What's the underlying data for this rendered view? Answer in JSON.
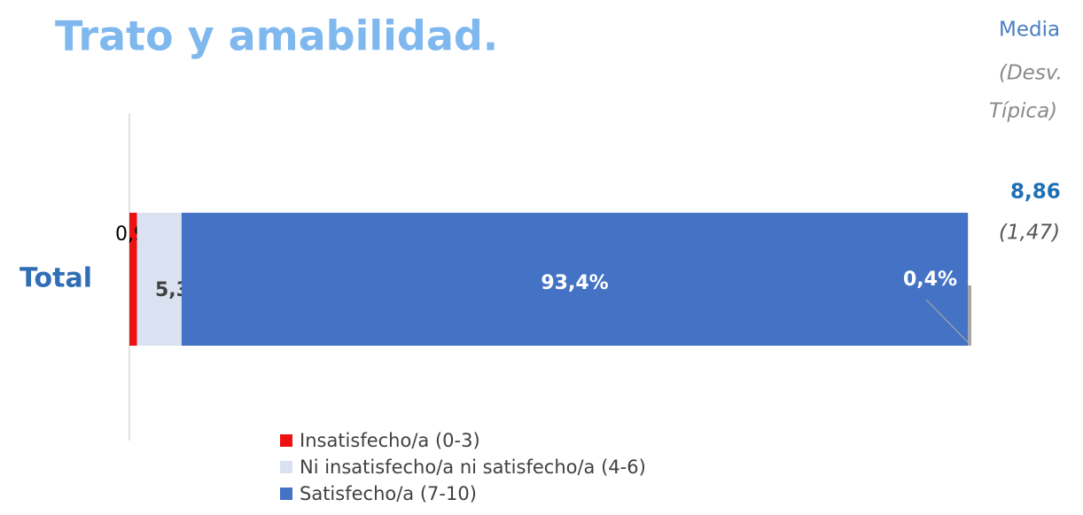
{
  "chart_data": {
    "type": "stacked_bar_horizontal",
    "title": "Trato y amabilidad.",
    "categories": [
      "Total"
    ],
    "xlim": [
      0,
      100
    ],
    "series": [
      {
        "name": "Insatisfecho/a (0-3)",
        "color": "#ee1111",
        "values": [
          0.9
        ],
        "value_labels": [
          "0,9%"
        ]
      },
      {
        "name": "Ni insatisfecho/a ni satisfecho/a (4-6)",
        "color": "#dae2f1",
        "values": [
          5.3
        ],
        "value_labels": [
          "5,3%"
        ]
      },
      {
        "name": "Satisfecho/a (7-10)",
        "color": "#4472c4",
        "values": [
          93.4
        ],
        "value_labels": [
          "93,4%"
        ]
      },
      {
        "color": "#a5a5a5",
        "values": [
          0.4
        ],
        "value_labels": [
          "0,4%"
        ]
      }
    ],
    "annotations": {
      "mean_header": [
        "Media",
        "(Desv.",
        "Típica)"
      ],
      "mean": "8,86",
      "sd": "(1,47)"
    }
  }
}
